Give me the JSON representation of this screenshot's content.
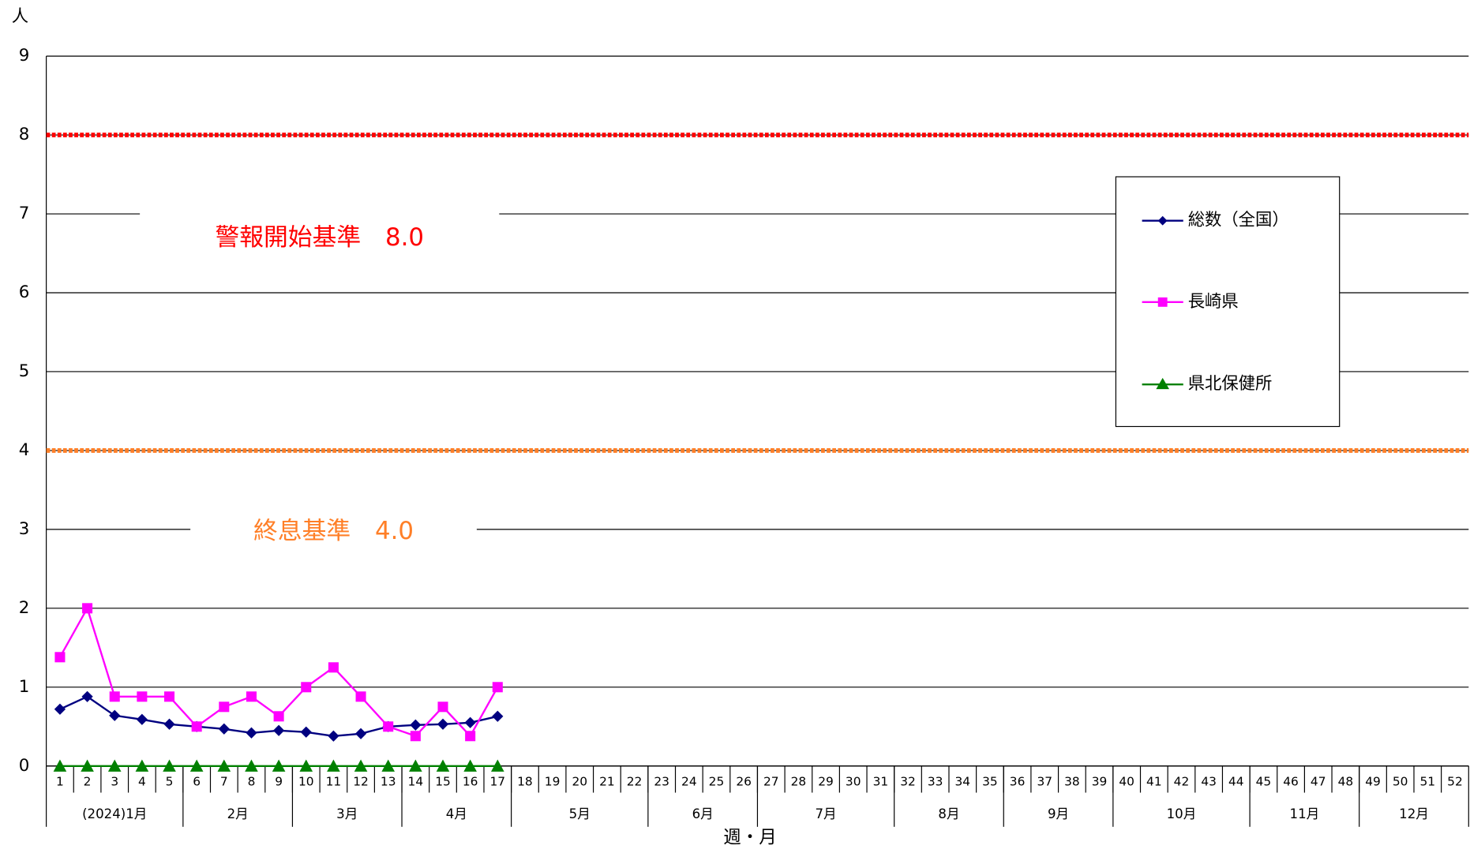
{
  "chart_data": {
    "type": "line",
    "y_unit_label": "人",
    "x_axis_label": "週・月",
    "ylim": [
      0,
      9
    ],
    "yticks": [
      0,
      1,
      2,
      3,
      4,
      5,
      6,
      7,
      8,
      9
    ],
    "grid": true,
    "categories": [
      1,
      2,
      3,
      4,
      5,
      6,
      7,
      8,
      9,
      10,
      11,
      12,
      13,
      14,
      15,
      16,
      17,
      18,
      19,
      20,
      21,
      22,
      23,
      24,
      25,
      26,
      27,
      28,
      29,
      30,
      31,
      32,
      33,
      34,
      35,
      36,
      37,
      38,
      39,
      40,
      41,
      42,
      43,
      44,
      45,
      46,
      47,
      48,
      49,
      50,
      51,
      52
    ],
    "month_groups": [
      {
        "label": "(2024)1月",
        "span": 5
      },
      {
        "label": "2月",
        "span": 4
      },
      {
        "label": "3月",
        "span": 4
      },
      {
        "label": "4月",
        "span": 4
      },
      {
        "label": "5月",
        "span": 5
      },
      {
        "label": "6月",
        "span": 4
      },
      {
        "label": "7月",
        "span": 5
      },
      {
        "label": "8月",
        "span": 4
      },
      {
        "label": "9月",
        "span": 4
      },
      {
        "label": "10月",
        "span": 5
      },
      {
        "label": "11月",
        "span": 4
      },
      {
        "label": "12月",
        "span": 4
      }
    ],
    "reference_lines": [
      {
        "value": 8.0,
        "label": "警報開始基準　8.0",
        "color": "#ff0000"
      },
      {
        "value": 4.0,
        "label": "終息基準　4.0",
        "color": "#ff7f27"
      }
    ],
    "series": [
      {
        "name": "総数（全国）",
        "color": "#000080",
        "marker": "diamond",
        "values": [
          0.72,
          0.88,
          0.64,
          0.59,
          0.53,
          0.5,
          0.47,
          0.42,
          0.45,
          0.43,
          0.38,
          0.41,
          0.5,
          0.52,
          0.53,
          0.55,
          0.63,
          null,
          null,
          null,
          null,
          null,
          null,
          null,
          null,
          null,
          null,
          null,
          null,
          null,
          null,
          null,
          null,
          null,
          null,
          null,
          null,
          null,
          null,
          null,
          null,
          null,
          null,
          null,
          null,
          null,
          null,
          null,
          null,
          null,
          null,
          null
        ]
      },
      {
        "name": "長崎県",
        "color": "#ff00ff",
        "marker": "square",
        "values": [
          1.38,
          2.0,
          0.88,
          0.88,
          0.88,
          0.5,
          0.75,
          0.88,
          0.63,
          1.0,
          1.25,
          0.88,
          0.5,
          0.38,
          0.75,
          0.38,
          1.0,
          null,
          null,
          null,
          null,
          null,
          null,
          null,
          null,
          null,
          null,
          null,
          null,
          null,
          null,
          null,
          null,
          null,
          null,
          null,
          null,
          null,
          null,
          null,
          null,
          null,
          null,
          null,
          null,
          null,
          null,
          null,
          null,
          null,
          null,
          null
        ]
      },
      {
        "name": "県北保健所",
        "color": "#008000",
        "marker": "triangle",
        "values": [
          0,
          0,
          0,
          0,
          0,
          0,
          0,
          0,
          0,
          0,
          0,
          0,
          0,
          0,
          0,
          0,
          0,
          null,
          null,
          null,
          null,
          null,
          null,
          null,
          null,
          null,
          null,
          null,
          null,
          null,
          null,
          null,
          null,
          null,
          null,
          null,
          null,
          null,
          null,
          null,
          null,
          null,
          null,
          null,
          null,
          null,
          null,
          null,
          null,
          null,
          null,
          null
        ]
      }
    ]
  }
}
